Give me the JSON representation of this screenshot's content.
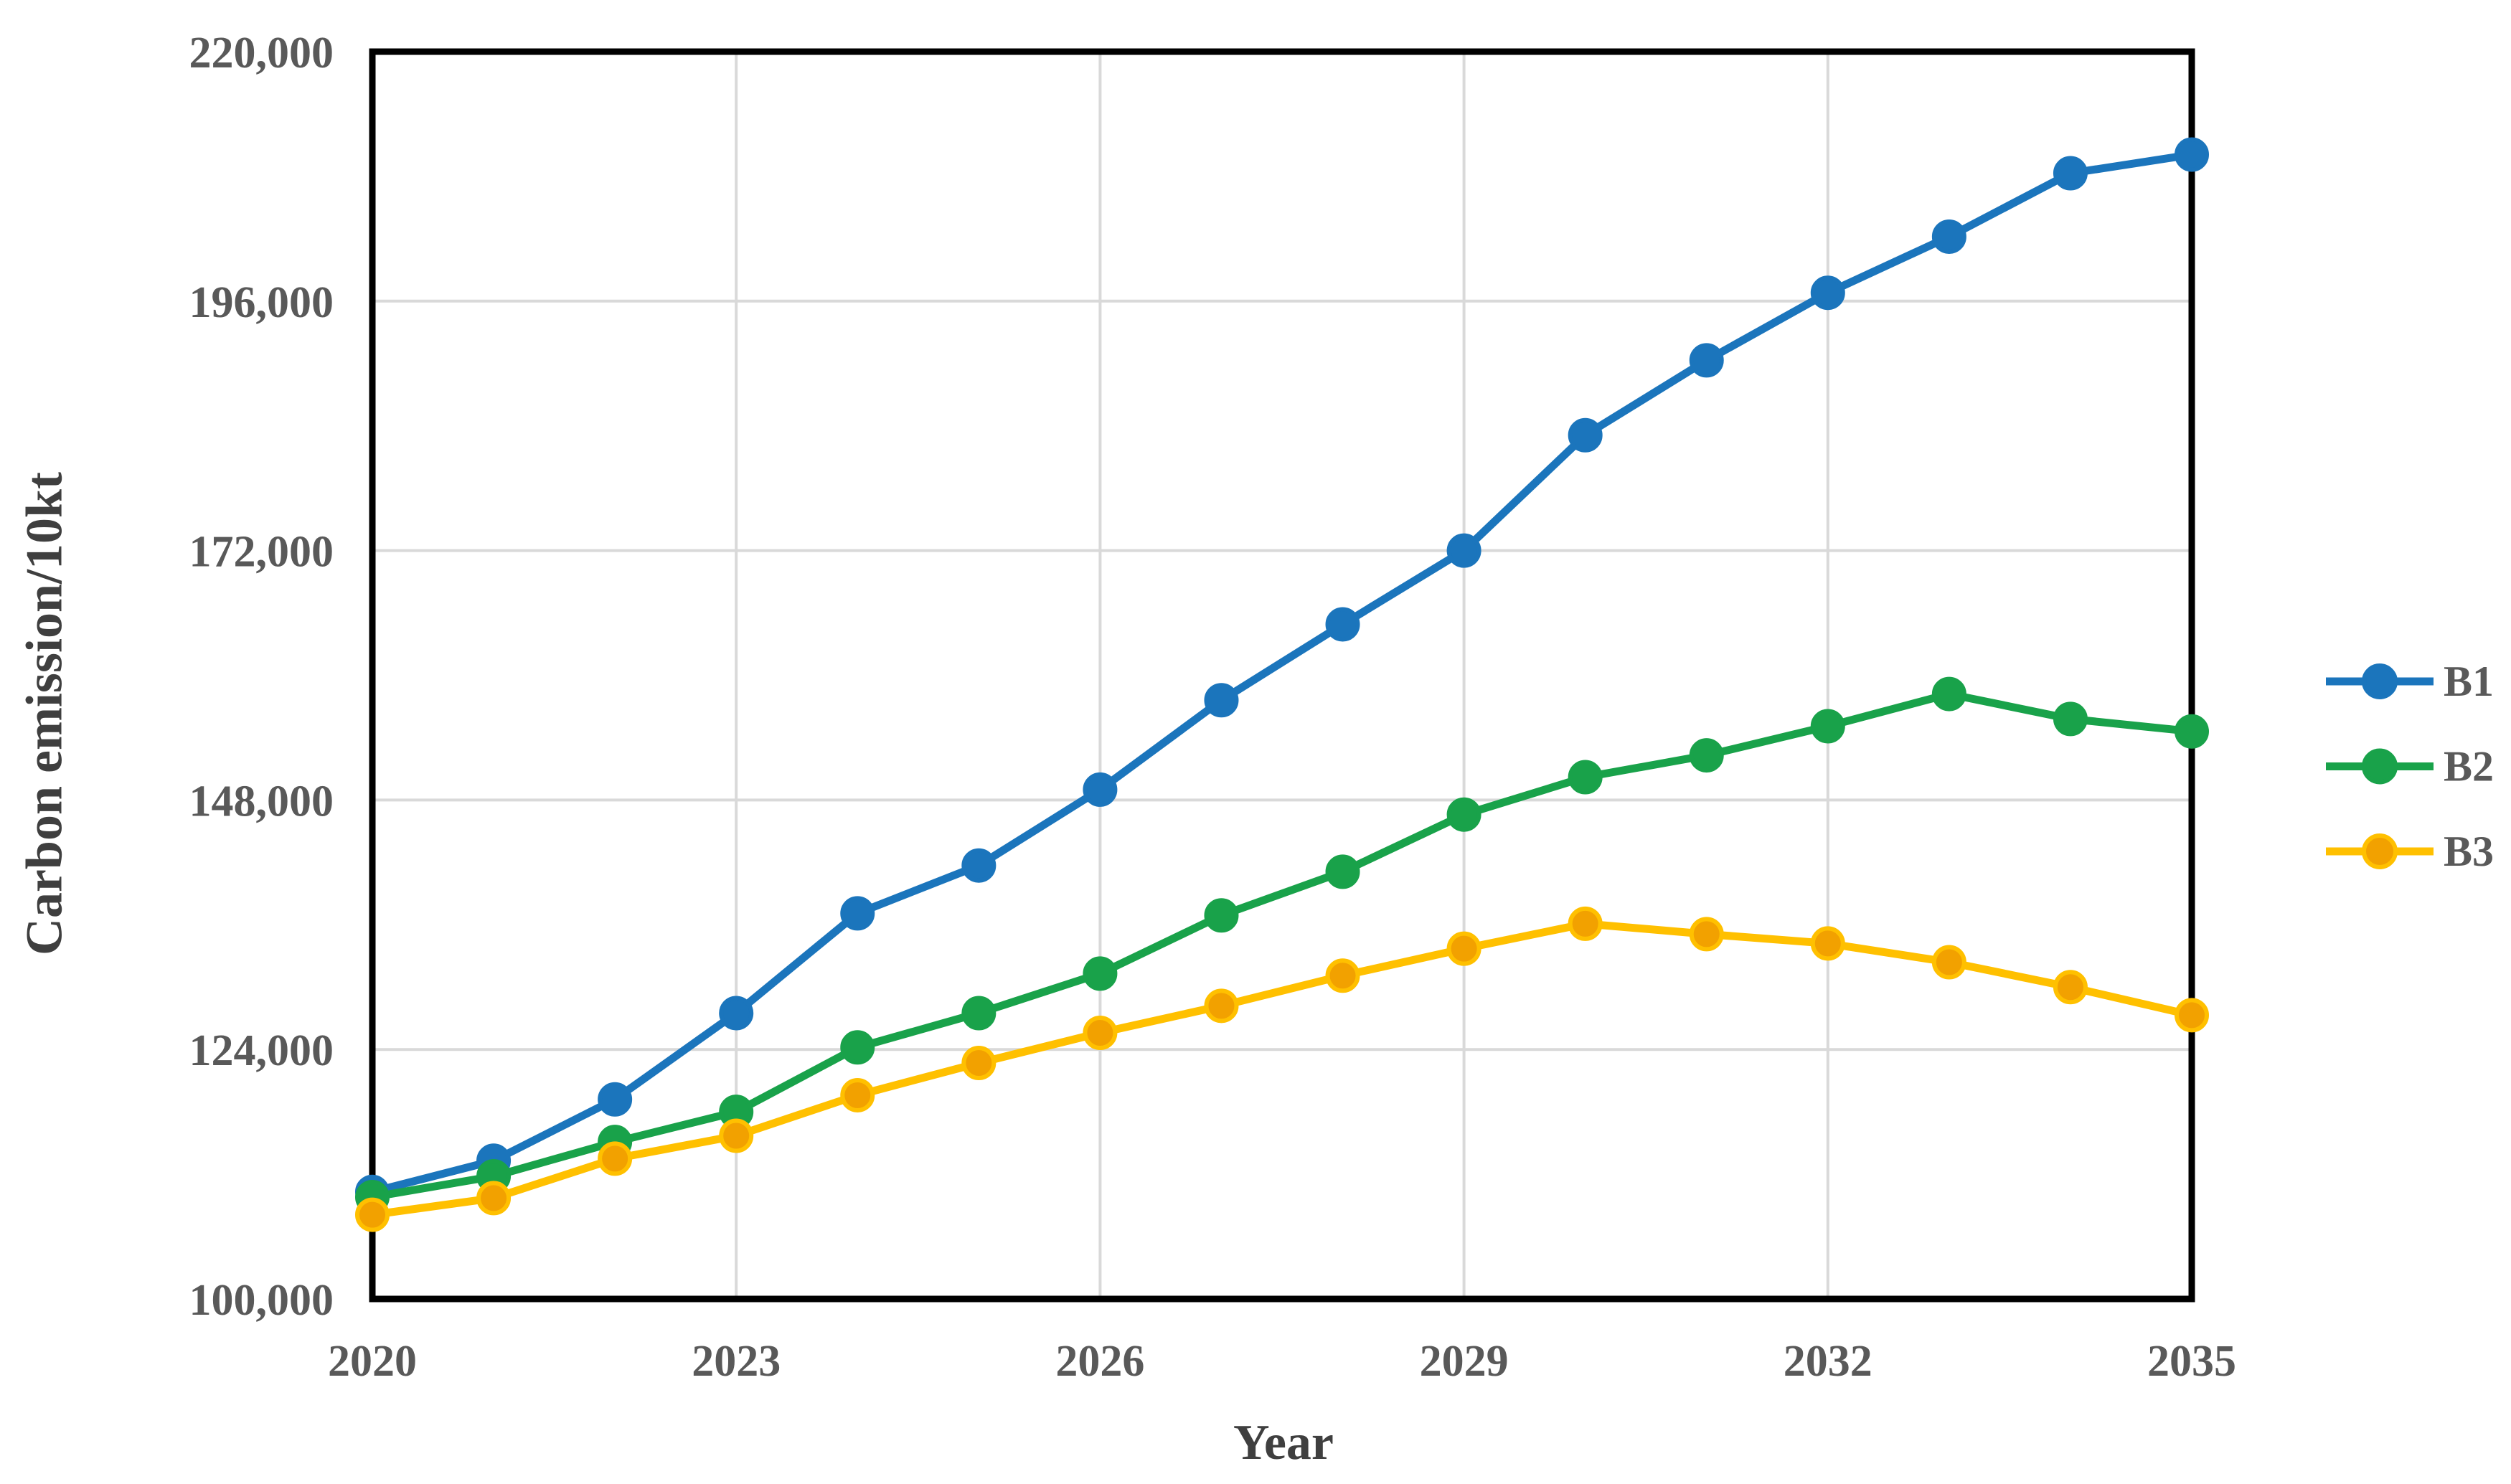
{
  "page": {
    "background": "#ffffff"
  },
  "chart_data": {
    "type": "line",
    "title": "",
    "xlabel": "Year",
    "ylabel": "Carbon emission/10kt",
    "x": [
      2020,
      2021,
      2022,
      2023,
      2024,
      2025,
      2026,
      2027,
      2028,
      2029,
      2030,
      2031,
      2032,
      2033,
      2034,
      2035
    ],
    "xticks": [
      2020,
      2023,
      2026,
      2029,
      2032,
      2035
    ],
    "yticks": [
      100000,
      124000,
      148000,
      172000,
      196000,
      220000
    ],
    "ylim": [
      100000,
      220000
    ],
    "xlim": [
      2020,
      2035
    ],
    "grid": true,
    "legend_position": "right",
    "series": [
      {
        "name": "B1",
        "color": "#1B75BC",
        "marker_color": "#1B75BC",
        "values": [
          110300,
          113300,
          119200,
          127500,
          137100,
          141700,
          149000,
          157600,
          164900,
          172000,
          183100,
          190300,
          196800,
          202200,
          208300,
          210100
        ]
      },
      {
        "name": "B2",
        "color": "#19A24A",
        "marker_color": "#19A24A",
        "values": [
          109800,
          111800,
          115100,
          118000,
          124200,
          127500,
          131300,
          136900,
          141100,
          146600,
          150200,
          152300,
          155100,
          158200,
          155800,
          154600
        ]
      },
      {
        "name": "B3",
        "color": "#FFC000",
        "marker_color": "#F2A100",
        "values": [
          108100,
          109700,
          113500,
          115700,
          119600,
          122700,
          125600,
          128200,
          131100,
          133700,
          136100,
          135100,
          134200,
          132400,
          130000,
          127300
        ]
      }
    ],
    "colors": {
      "gridline": "#D9D9D9",
      "plot_border": "#000000",
      "tick_label": "#595959",
      "axis_title": "#3F3F3F",
      "legend_label": "#595959"
    }
  }
}
